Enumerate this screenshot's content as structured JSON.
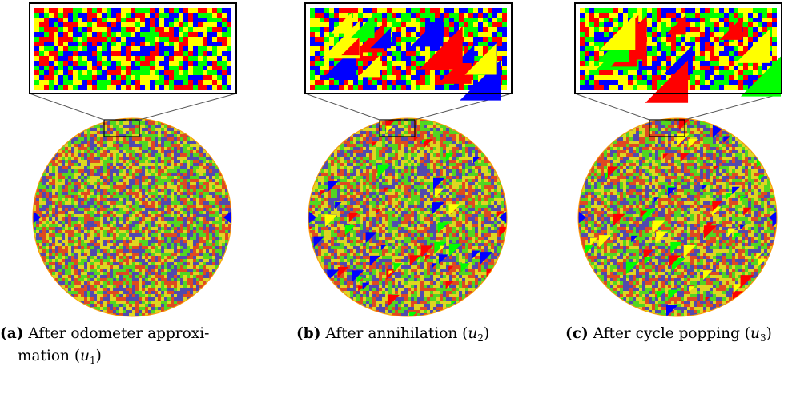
{
  "colors": {
    "red": "#ff0000",
    "green": "#00ff00",
    "blue": "#0000ff",
    "yellow": "#ffff00",
    "orange": "#ff9900",
    "frame": "#000000",
    "callout": "#555555"
  },
  "panels": [
    {
      "id": "a",
      "tag": "(a)",
      "text_line1": "After odometer approxi-",
      "text_line2_prefix": "mation (",
      "var": "u",
      "sub": "1",
      "close": ")"
    },
    {
      "id": "b",
      "tag": "(b)",
      "text_line1": "After annihilation (",
      "var": "u",
      "sub": "2",
      "close": ")"
    },
    {
      "id": "c",
      "tag": "(c)",
      "text_line1": "After cycle popping (",
      "var": "u",
      "sub": "3",
      "close": ")"
    }
  ]
}
